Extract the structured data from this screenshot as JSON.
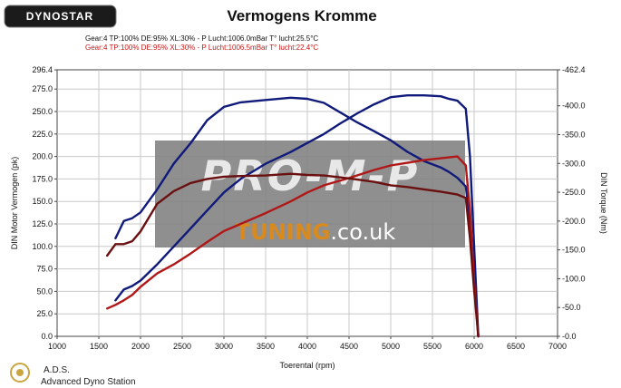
{
  "brand": {
    "logo_text": "DYNOSTAR"
  },
  "title": "Vermogens Kromme",
  "info": {
    "line1": "Gear:4 TP:100% DE:95% XL:30%   - P Lucht:1006.0mBar T° lucht:25.5°C",
    "line2": "Gear:4 TP:100% DE:95% XL:30%   - P Lucht:1006.5mBar T° lucht:22.4°C"
  },
  "watermark": {
    "big_text": "PRO-M-P",
    "sub_text_orange": "TUNING",
    "sub_text_white": ".co.uk"
  },
  "footer": {
    "logo_text": "A.D.S.",
    "subtitle": "Advanced Dyno Station"
  },
  "colors": {
    "blue": "#101a7a",
    "red": "#b01818",
    "dark_red": "#6a1010",
    "grid": "#c8c8c8",
    "plot_bg": "#ffffff"
  },
  "chart_data": {
    "type": "line",
    "xlabel": "Toerental (rpm)",
    "ylabel_left": "DIN Motor Vermogen (pk)",
    "ylabel_right": "DIN Torque (Nm)",
    "xlim": [
      1000,
      7000
    ],
    "ylim_left": [
      0,
      296.4
    ],
    "ylim_right": [
      0,
      462.4
    ],
    "x_ticks": [
      "1000",
      "1500",
      "2000",
      "2500",
      "3000",
      "3500",
      "4000",
      "4500",
      "5000",
      "5500",
      "6000",
      "6500",
      "7000"
    ],
    "y_left_ticks": [
      "0.0",
      "25.0",
      "50.0",
      "75.0",
      "100.0",
      "125.0",
      "150.0",
      "175.0",
      "200.0",
      "225.0",
      "250.0",
      "275.0",
      "296.4"
    ],
    "y_right_ticks": [
      "0.0",
      "50.0",
      "100.0",
      "150.0",
      "200.0",
      "250.0",
      "300.0",
      "350.0",
      "400.0",
      "462.4"
    ],
    "series": [
      {
        "axis": "left",
        "color_key": "blue",
        "x": [
          1700,
          1800,
          1900,
          2000,
          2200,
          2400,
          2600,
          2800,
          3000,
          3200,
          3500,
          3800,
          4000,
          4200,
          4400,
          4600,
          4800,
          5000,
          5200,
          5400,
          5600,
          5700,
          5800,
          5900,
          5950,
          6000,
          6050
        ],
        "y": [
          40,
          52,
          56,
          62,
          80,
          100,
          120,
          140,
          160,
          175,
          192,
          205,
          215,
          225,
          237,
          248,
          258,
          266,
          268,
          268,
          267,
          264,
          262,
          253,
          200,
          100,
          0
        ]
      },
      {
        "axis": "right",
        "color_key": "blue",
        "x": [
          1700,
          1800,
          1900,
          2000,
          2200,
          2400,
          2600,
          2800,
          3000,
          3200,
          3500,
          3800,
          4000,
          4200,
          4400,
          4600,
          4800,
          5000,
          5200,
          5400,
          5600,
          5700,
          5800,
          5900,
          5950,
          6000,
          6050
        ],
        "y": [
          170,
          200,
          205,
          215,
          255,
          300,
          335,
          375,
          398,
          406,
          410,
          414,
          412,
          405,
          388,
          371,
          356,
          340,
          320,
          304,
          293,
          285,
          275,
          260,
          200,
          100,
          0
        ]
      },
      {
        "axis": "left",
        "color_key": "red",
        "x": [
          1600,
          1700,
          1800,
          1900,
          2000,
          2200,
          2400,
          2600,
          2800,
          3000,
          3200,
          3500,
          3800,
          4000,
          4200,
          4500,
          4800,
          5000,
          5200,
          5400,
          5600,
          5800,
          5900,
          5950,
          6000,
          6050
        ],
        "y": [
          31,
          35,
          40,
          46,
          55,
          70,
          80,
          92,
          105,
          117,
          125,
          137,
          150,
          160,
          168,
          176,
          185,
          190,
          193,
          196,
          198,
          200,
          190,
          140,
          60,
          0
        ]
      },
      {
        "axis": "right",
        "color_key": "dark_red",
        "x": [
          1600,
          1700,
          1800,
          1900,
          2000,
          2200,
          2400,
          2600,
          2800,
          3000,
          3200,
          3500,
          3800,
          4000,
          4200,
          4500,
          4800,
          5000,
          5200,
          5400,
          5600,
          5800,
          5900,
          5950,
          6000,
          6050
        ],
        "y": [
          140,
          160,
          160,
          165,
          182,
          230,
          252,
          266,
          273,
          277,
          278,
          279,
          282,
          280,
          279,
          274,
          268,
          262,
          259,
          255,
          251,
          246,
          240,
          170,
          80,
          0
        ]
      }
    ]
  }
}
